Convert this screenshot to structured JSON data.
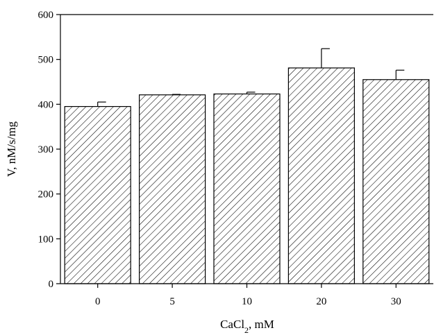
{
  "chart_data": {
    "type": "bar",
    "categories": [
      "0",
      "5",
      "10",
      "20",
      "30"
    ],
    "values": [
      395,
      421,
      423,
      481,
      455
    ],
    "errors": [
      10,
      1,
      4,
      43,
      21
    ],
    "xlabel": {
      "main": "CaCl",
      "sub": "2",
      "tail": ", mM"
    },
    "ylabel": "V, nM/s/mg",
    "ylim": [
      0,
      600
    ],
    "yticks": [
      0,
      100,
      200,
      300,
      400,
      500,
      600
    ],
    "bar_fill": "diagonal-hatch",
    "bar_color": "#000000",
    "grid": false,
    "legend": "none"
  }
}
